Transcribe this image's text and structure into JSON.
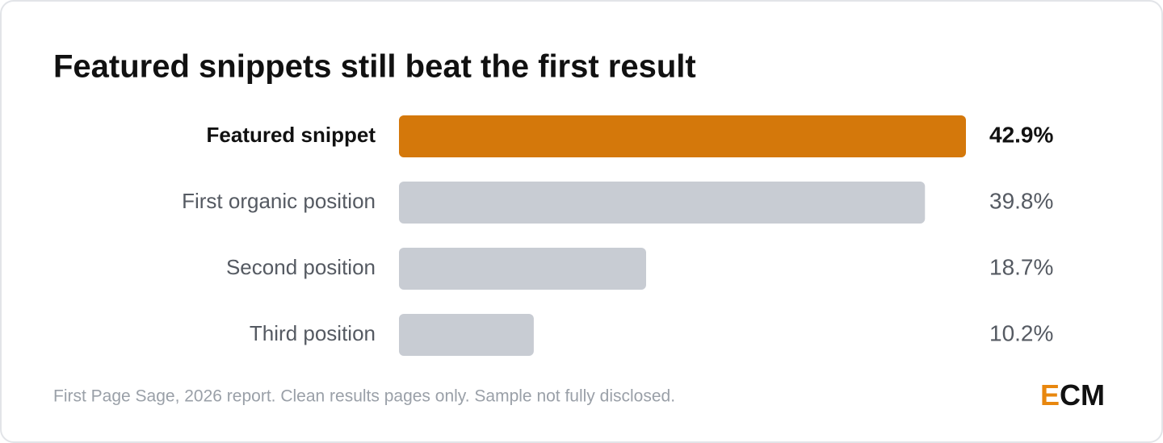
{
  "chart_data": {
    "type": "bar",
    "orientation": "horizontal",
    "title": "Featured snippets still beat the first result",
    "categories": [
      "Featured snippet",
      "First organic position",
      "Second position",
      "Third position"
    ],
    "values": [
      42.9,
      39.8,
      18.7,
      10.2
    ],
    "value_labels": [
      "42.9%",
      "39.8%",
      "18.7%",
      "10.2%"
    ],
    "colors": [
      "#d4780b",
      "#c8ccd3",
      "#c8ccd3",
      "#c8ccd3"
    ],
    "note": "First Page Sage, 2026 report. Clean results pages only. Sample not fully disclosed.",
    "logo": {
      "accent": "E",
      "rest": "CM",
      "accent_color": "#e8870e"
    }
  }
}
